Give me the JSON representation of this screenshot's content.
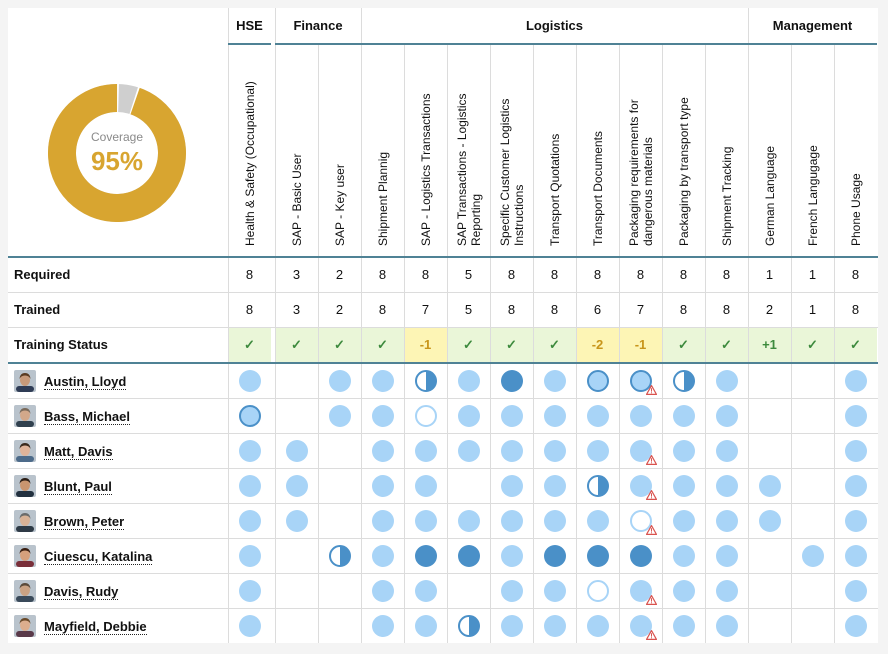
{
  "coverage": {
    "label": "Coverage",
    "value": "95%",
    "fraction": 0.95
  },
  "groups": [
    {
      "name": "HSE",
      "from": 0,
      "to": 0
    },
    {
      "name": "Finance",
      "from": 1,
      "to": 2
    },
    {
      "name": "Logistics",
      "from": 3,
      "to": 11
    },
    {
      "name": "Management",
      "from": 12,
      "to": 14
    }
  ],
  "columns": [
    [
      "Health & Safety (Occupational)"
    ],
    [
      "SAP - Basic User"
    ],
    [
      "SAP - Key user"
    ],
    [
      "Shipment Plannig"
    ],
    [
      "SAP - Logistics Transactions"
    ],
    [
      "SAP Transactions - Logistics",
      "Reporting"
    ],
    [
      "Specific Customer Logistics",
      "Instructions"
    ],
    [
      "Transport Quotations"
    ],
    [
      "Transport Documents"
    ],
    [
      "Packaging requirements for",
      "dangerous materials"
    ],
    [
      "Packaging by transport type"
    ],
    [
      "Shipment Tracking"
    ],
    [
      "German Language"
    ],
    [
      "French Langugage"
    ],
    [
      "Phone Usage"
    ]
  ],
  "summary": {
    "required_label": "Required",
    "trained_label": "Trained",
    "status_label": "Training Status",
    "required": [
      "8",
      "3",
      "2",
      "8",
      "8",
      "5",
      "8",
      "8",
      "8",
      "8",
      "8",
      "8",
      "1",
      "1",
      "8"
    ],
    "trained": [
      "8",
      "3",
      "2",
      "8",
      "7",
      "5",
      "8",
      "8",
      "6",
      "7",
      "8",
      "8",
      "2",
      "1",
      "8"
    ],
    "status": [
      "✓",
      "✓",
      "✓",
      "✓",
      "-1",
      "✓",
      "✓",
      "✓",
      "-2",
      "-1",
      "✓",
      "✓",
      "+1",
      "✓",
      "✓"
    ]
  },
  "colors": {
    "accent": "#4f8295",
    "coverage_fill": "#d8a530",
    "coverage_rest": "#cfcfcf",
    "ok_bg": "#eaf6d8",
    "warn_bg": "#fdf5b5",
    "dot_light": "#a8d4f7",
    "dot_dark": "#4a90c8",
    "warning": "#d9534f"
  },
  "people": [
    {
      "name": "Austin, Lloyd",
      "cells": [
        "full",
        "",
        "full",
        "full",
        "half",
        "full",
        "dark",
        "full",
        "ring",
        "ring-warn",
        "half",
        "full",
        "",
        "",
        "full"
      ]
    },
    {
      "name": "Bass, Michael",
      "cells": [
        "ring",
        "",
        "full",
        "full",
        "empty",
        "full",
        "full",
        "full",
        "full",
        "full",
        "full",
        "full",
        "",
        "",
        "full"
      ]
    },
    {
      "name": "Matt, Davis",
      "cells": [
        "full",
        "full",
        "",
        "full",
        "full",
        "full",
        "full",
        "full",
        "full",
        "full-warn",
        "full",
        "full",
        "",
        "",
        "full"
      ]
    },
    {
      "name": "Blunt, Paul",
      "cells": [
        "full",
        "full",
        "",
        "full",
        "full",
        "",
        "full",
        "full",
        "half",
        "full-warn",
        "full",
        "full",
        "full",
        "",
        "full"
      ]
    },
    {
      "name": "Brown, Peter",
      "cells": [
        "full",
        "full",
        "",
        "full",
        "full",
        "full",
        "full",
        "full",
        "full",
        "empty-warn",
        "full",
        "full",
        "full",
        "",
        "full"
      ]
    },
    {
      "name": "Ciuescu, Katalina",
      "cells": [
        "full",
        "",
        "half",
        "full",
        "dark",
        "dark",
        "full",
        "dark",
        "dark",
        "dark",
        "full",
        "full",
        "",
        "full",
        "full"
      ]
    },
    {
      "name": "Davis, Rudy",
      "cells": [
        "full",
        "",
        "",
        "full",
        "full",
        "",
        "full",
        "full",
        "empty",
        "full-warn",
        "full",
        "full",
        "",
        "",
        "full"
      ]
    },
    {
      "name": "Mayfield, Debbie",
      "cells": [
        "full",
        "",
        "",
        "full",
        "full",
        "half",
        "full",
        "full",
        "full",
        "full-warn",
        "full",
        "full",
        "",
        "",
        "full"
      ]
    }
  ]
}
